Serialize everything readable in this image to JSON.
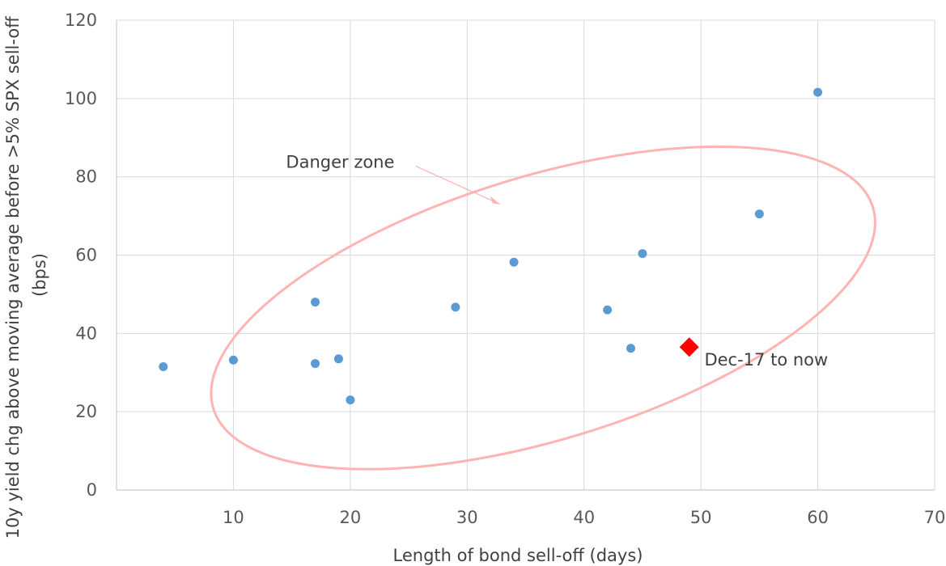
{
  "chart_data": {
    "type": "scatter",
    "title": "",
    "xlabel": "Length of bond sell-off (days)",
    "ylabel": "10y yield chg above moving average before >5% SPX sell-off (bps)",
    "xlim": [
      0,
      70
    ],
    "ylim": [
      0,
      120
    ],
    "x_ticks": [
      10,
      20,
      30,
      40,
      50,
      60,
      70
    ],
    "y_ticks": [
      0,
      20,
      40,
      60,
      80,
      100,
      120
    ],
    "grid": true,
    "series": [
      {
        "color": "#5b9bd5",
        "marker": "circle",
        "points": [
          {
            "x": 4,
            "y": 31.5
          },
          {
            "x": 10,
            "y": 33.2
          },
          {
            "x": 17,
            "y": 48
          },
          {
            "x": 17,
            "y": 32.3
          },
          {
            "x": 19,
            "y": 33.5
          },
          {
            "x": 20,
            "y": 23
          },
          {
            "x": 29,
            "y": 46.7
          },
          {
            "x": 34,
            "y": 58.2
          },
          {
            "x": 42,
            "y": 46
          },
          {
            "x": 44,
            "y": 36.2
          },
          {
            "x": 45,
            "y": 60.4
          },
          {
            "x": 55,
            "y": 70.5
          },
          {
            "x": 60,
            "y": 101.6
          }
        ]
      },
      {
        "color": "#ff0000",
        "marker": "diamond",
        "points": [
          {
            "x": 49,
            "y": 36.5
          }
        ]
      }
    ],
    "annotations": [
      {
        "text": "Danger zone",
        "x": 14.5,
        "y": 84
      },
      {
        "text": "Dec-17 to now",
        "x": 50.3,
        "y": 33.5
      }
    ],
    "danger_zone_ellipse": {
      "color": "#ffb3b3",
      "center": [
        36.5,
        46.5
      ],
      "semi_major": 29.5,
      "semi_minor": 20.5,
      "angle_deg": 17
    }
  }
}
